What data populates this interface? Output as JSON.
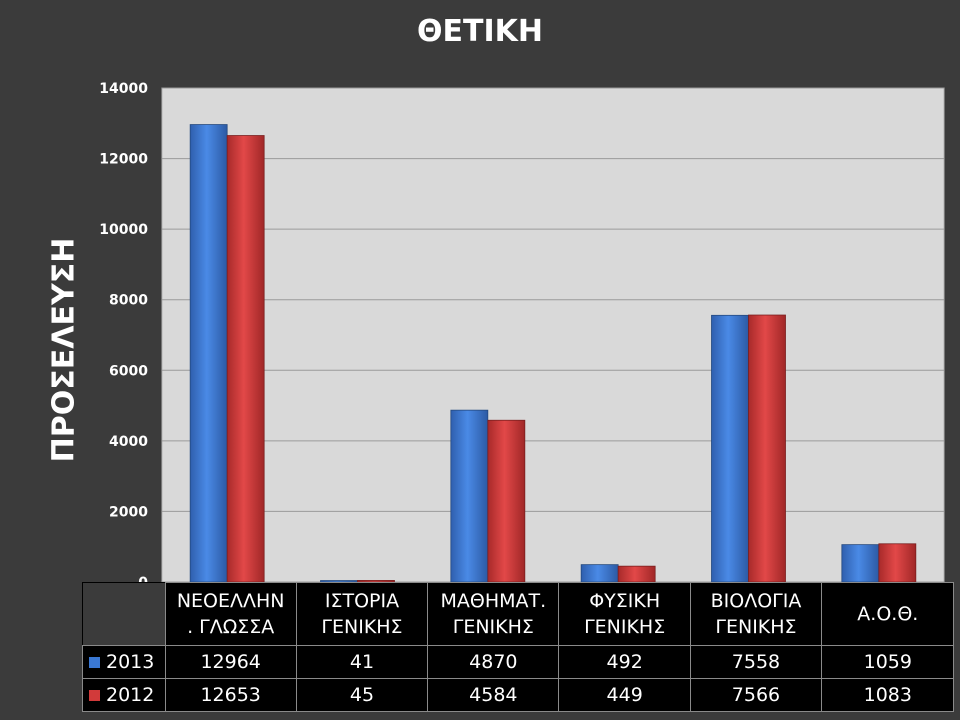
{
  "chart_data": {
    "type": "bar",
    "title": "ΘΕΤΙΚΗ",
    "ylabel": "ΠΡΟΣΕΛΕΥΣΗ",
    "ylim": [
      0,
      14000
    ],
    "yticks": [
      0,
      2000,
      4000,
      6000,
      8000,
      10000,
      12000,
      14000
    ],
    "grid": true,
    "categories": [
      "ΝΕΟΕΛΛΗΝ\n. ΓΛΩΣΣΑ",
      "ΙΣΤΟΡΙΑ\nΓΕΝΙΚΗΣ",
      "ΜΑΘΗΜΑΤ.\nΓΕΝΙΚΗΣ",
      "ΦΥΣΙΚΗ\nΓΕΝΙΚΗΣ",
      "ΒΙΟΛΟΓΙΑ\nΓΕΝΙΚΗΣ",
      "Α.Ο.Θ."
    ],
    "series": [
      {
        "name": "2013",
        "color": "#3a78d4",
        "values": [
          12964,
          41,
          4870,
          492,
          7558,
          1059
        ]
      },
      {
        "name": "2012",
        "color": "#d23a3a",
        "values": [
          12653,
          45,
          4584,
          449,
          7566,
          1083
        ]
      }
    ]
  }
}
